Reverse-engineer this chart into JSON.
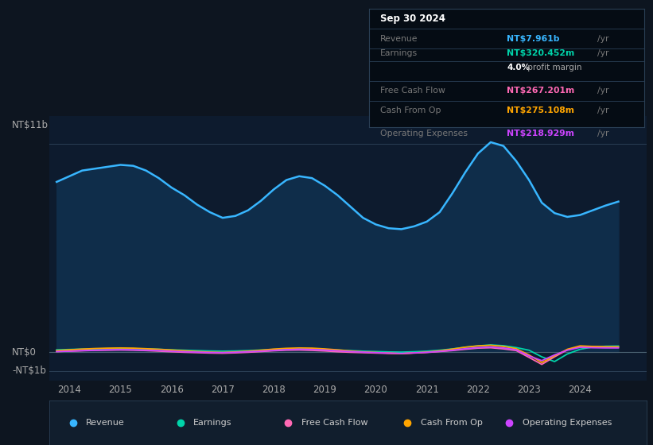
{
  "bg_color": "#0d1520",
  "plot_bg_color": "#0d1b2e",
  "ylabel_nt11b": "NT$11b",
  "ylabel_nt0": "NT$0",
  "ylabel_ntminus1b": "-NT$1b",
  "ylim": [
    -1500000000,
    12500000000
  ],
  "xlim": [
    2013.6,
    2025.3
  ],
  "xticks": [
    2014,
    2015,
    2016,
    2017,
    2018,
    2019,
    2020,
    2021,
    2022,
    2023,
    2024
  ],
  "revenue_color": "#38b6ff",
  "earnings_color": "#00d4aa",
  "fcf_color": "#ff69b4",
  "cashfromop_color": "#ffa500",
  "opex_color": "#cc44ff",
  "fill_color": "#0f2d4a",
  "legend_items": [
    {
      "label": "Revenue",
      "color": "#38b6ff"
    },
    {
      "label": "Earnings",
      "color": "#00d4aa"
    },
    {
      "label": "Free Cash Flow",
      "color": "#ff69b4"
    },
    {
      "label": "Cash From Op",
      "color": "#ffa500"
    },
    {
      "label": "Operating Expenses",
      "color": "#cc44ff"
    }
  ],
  "revenue_x": [
    2013.75,
    2014.0,
    2014.25,
    2014.5,
    2014.75,
    2015.0,
    2015.25,
    2015.5,
    2015.75,
    2016.0,
    2016.25,
    2016.5,
    2016.75,
    2017.0,
    2017.25,
    2017.5,
    2017.75,
    2018.0,
    2018.25,
    2018.5,
    2018.75,
    2019.0,
    2019.25,
    2019.5,
    2019.75,
    2020.0,
    2020.25,
    2020.5,
    2020.75,
    2021.0,
    2021.25,
    2021.5,
    2021.75,
    2022.0,
    2022.25,
    2022.5,
    2022.75,
    2023.0,
    2023.25,
    2023.5,
    2023.75,
    2024.0,
    2024.25,
    2024.5,
    2024.75
  ],
  "revenue_y": [
    9000000000.0,
    9300000000.0,
    9600000000.0,
    9700000000.0,
    9800000000.0,
    9900000000.0,
    9850000000.0,
    9600000000.0,
    9200000000.0,
    8700000000.0,
    8300000000.0,
    7800000000.0,
    7400000000.0,
    7100000000.0,
    7200000000.0,
    7500000000.0,
    8000000000.0,
    8600000000.0,
    9100000000.0,
    9300000000.0,
    9200000000.0,
    8800000000.0,
    8300000000.0,
    7700000000.0,
    7100000000.0,
    6750000000.0,
    6550000000.0,
    6500000000.0,
    6650000000.0,
    6900000000.0,
    7400000000.0,
    8400000000.0,
    9500000000.0,
    10500000000.0,
    11100000000.0,
    10900000000.0,
    10100000000.0,
    9100000000.0,
    7900000000.0,
    7350000000.0,
    7150000000.0,
    7250000000.0,
    7500000000.0,
    7750000000.0,
    7960000000.0
  ],
  "earnings_x": [
    2013.75,
    2014.0,
    2014.25,
    2014.5,
    2014.75,
    2015.0,
    2015.25,
    2015.5,
    2015.75,
    2016.0,
    2016.25,
    2016.5,
    2016.75,
    2017.0,
    2017.25,
    2017.5,
    2017.75,
    2018.0,
    2018.25,
    2018.5,
    2018.75,
    2019.0,
    2019.25,
    2019.5,
    2019.75,
    2020.0,
    2020.25,
    2020.5,
    2020.75,
    2021.0,
    2021.25,
    2021.5,
    2021.75,
    2022.0,
    2022.25,
    2022.5,
    2022.75,
    2023.0,
    2023.25,
    2023.5,
    2023.75,
    2024.0,
    2024.25,
    2024.5,
    2024.75
  ],
  "earnings_y": [
    120000000.0,
    140000000.0,
    160000000.0,
    170000000.0,
    180000000.0,
    190000000.0,
    180000000.0,
    170000000.0,
    150000000.0,
    120000000.0,
    100000000.0,
    80000000.0,
    60000000.0,
    50000000.0,
    60000000.0,
    80000000.0,
    110000000.0,
    140000000.0,
    160000000.0,
    170000000.0,
    165000000.0,
    140000000.0,
    110000000.0,
    80000000.0,
    50000000.0,
    30000000.0,
    10000000.0,
    0,
    20000000.0,
    50000000.0,
    100000000.0,
    170000000.0,
    260000000.0,
    330000000.0,
    380000000.0,
    340000000.0,
    240000000.0,
    100000000.0,
    -250000000.0,
    -500000000.0,
    -100000000.0,
    150000000.0,
    270000000.0,
    310000000.0,
    320000000.0
  ],
  "fcf_x": [
    2013.75,
    2014.0,
    2014.25,
    2014.5,
    2014.75,
    2015.0,
    2015.25,
    2015.5,
    2015.75,
    2016.0,
    2016.25,
    2016.5,
    2016.75,
    2017.0,
    2017.25,
    2017.5,
    2017.75,
    2018.0,
    2018.25,
    2018.5,
    2018.75,
    2019.0,
    2019.25,
    2019.5,
    2019.75,
    2020.0,
    2020.25,
    2020.5,
    2020.75,
    2021.0,
    2021.25,
    2021.5,
    2021.75,
    2022.0,
    2022.25,
    2022.5,
    2022.75,
    2023.0,
    2023.25,
    2023.5,
    2023.75,
    2024.0,
    2024.25,
    2024.5,
    2024.75
  ],
  "fcf_y": [
    30000000.0,
    50000000.0,
    70000000.0,
    90000000.0,
    100000000.0,
    110000000.0,
    100000000.0,
    80000000.0,
    50000000.0,
    20000000.0,
    -10000000.0,
    -30000000.0,
    -50000000.0,
    -60000000.0,
    -40000000.0,
    -10000000.0,
    30000000.0,
    70000000.0,
    100000000.0,
    110000000.0,
    90000000.0,
    60000000.0,
    20000000.0,
    -10000000.0,
    -30000000.0,
    -50000000.0,
    -70000000.0,
    -80000000.0,
    -50000000.0,
    -20000000.0,
    30000000.0,
    80000000.0,
    150000000.0,
    210000000.0,
    230000000.0,
    170000000.0,
    80000000.0,
    -280000000.0,
    -650000000.0,
    -250000000.0,
    120000000.0,
    300000000.0,
    280000000.0,
    270000000.0,
    267000000.0
  ],
  "cashfromop_x": [
    2013.75,
    2014.0,
    2014.25,
    2014.5,
    2014.75,
    2015.0,
    2015.25,
    2015.5,
    2015.75,
    2016.0,
    2016.25,
    2016.5,
    2016.75,
    2017.0,
    2017.25,
    2017.5,
    2017.75,
    2018.0,
    2018.25,
    2018.5,
    2018.75,
    2019.0,
    2019.25,
    2019.5,
    2019.75,
    2020.0,
    2020.25,
    2020.5,
    2020.75,
    2021.0,
    2021.25,
    2021.5,
    2021.75,
    2022.0,
    2022.25,
    2022.5,
    2022.75,
    2023.0,
    2023.25,
    2023.5,
    2023.75,
    2024.0,
    2024.25,
    2024.5,
    2024.75
  ],
  "cashfromop_y": [
    80000000.0,
    120000000.0,
    160000000.0,
    190000000.0,
    210000000.0,
    220000000.0,
    210000000.0,
    180000000.0,
    150000000.0,
    110000000.0,
    70000000.0,
    30000000.0,
    0,
    -20000000.0,
    10000000.0,
    50000000.0,
    100000000.0,
    160000000.0,
    200000000.0,
    220000000.0,
    210000000.0,
    170000000.0,
    120000000.0,
    60000000.0,
    10000000.0,
    -20000000.0,
    -50000000.0,
    -80000000.0,
    -40000000.0,
    0,
    70000000.0,
    160000000.0,
    260000000.0,
    330000000.0,
    360000000.0,
    300000000.0,
    180000000.0,
    -150000000.0,
    -550000000.0,
    -200000000.0,
    150000000.0,
    330000000.0,
    300000000.0,
    280000000.0,
    275000000.0
  ],
  "opex_x": [
    2013.75,
    2014.0,
    2014.25,
    2014.5,
    2014.75,
    2015.0,
    2015.25,
    2015.5,
    2015.75,
    2016.0,
    2016.25,
    2016.5,
    2016.75,
    2017.0,
    2017.25,
    2017.5,
    2017.75,
    2018.0,
    2018.25,
    2018.5,
    2018.75,
    2019.0,
    2019.25,
    2019.5,
    2019.75,
    2020.0,
    2020.25,
    2020.5,
    2020.75,
    2021.0,
    2021.25,
    2021.5,
    2021.75,
    2022.0,
    2022.25,
    2022.5,
    2022.75,
    2023.0,
    2023.25,
    2023.5,
    2023.75,
    2024.0,
    2024.25,
    2024.5,
    2024.75
  ],
  "opex_y": [
    30000000.0,
    50000000.0,
    80000000.0,
    100000000.0,
    120000000.0,
    130000000.0,
    120000000.0,
    100000000.0,
    80000000.0,
    50000000.0,
    20000000.0,
    0,
    -20000000.0,
    -30000000.0,
    -10000000.0,
    20000000.0,
    50000000.0,
    90000000.0,
    130000000.0,
    150000000.0,
    140000000.0,
    110000000.0,
    70000000.0,
    30000000.0,
    0,
    -30000000.0,
    -50000000.0,
    -70000000.0,
    -40000000.0,
    -10000000.0,
    40000000.0,
    100000000.0,
    180000000.0,
    240000000.0,
    270000000.0,
    220000000.0,
    120000000.0,
    -200000000.0,
    -450000000.0,
    -150000000.0,
    100000000.0,
    250000000.0,
    230000000.0,
    220000000.0,
    219000000.0
  ],
  "tooltip": {
    "date": "Sep 30 2024",
    "revenue_label": "Revenue",
    "revenue_value": "NT$7.961b",
    "revenue_color": "#38b6ff",
    "earnings_label": "Earnings",
    "earnings_value": "NT$320.452m",
    "earnings_color": "#00d4aa",
    "margin_text": "4.0%",
    "margin_label": " profit margin",
    "fcf_label": "Free Cash Flow",
    "fcf_value": "NT$267.201m",
    "fcf_color": "#ff69b4",
    "cashfromop_label": "Cash From Op",
    "cashfromop_value": "NT$275.108m",
    "cashfromop_color": "#ffa500",
    "opex_label": "Operating Expenses",
    "opex_value": "NT$218.929m",
    "opex_color": "#cc44ff"
  }
}
